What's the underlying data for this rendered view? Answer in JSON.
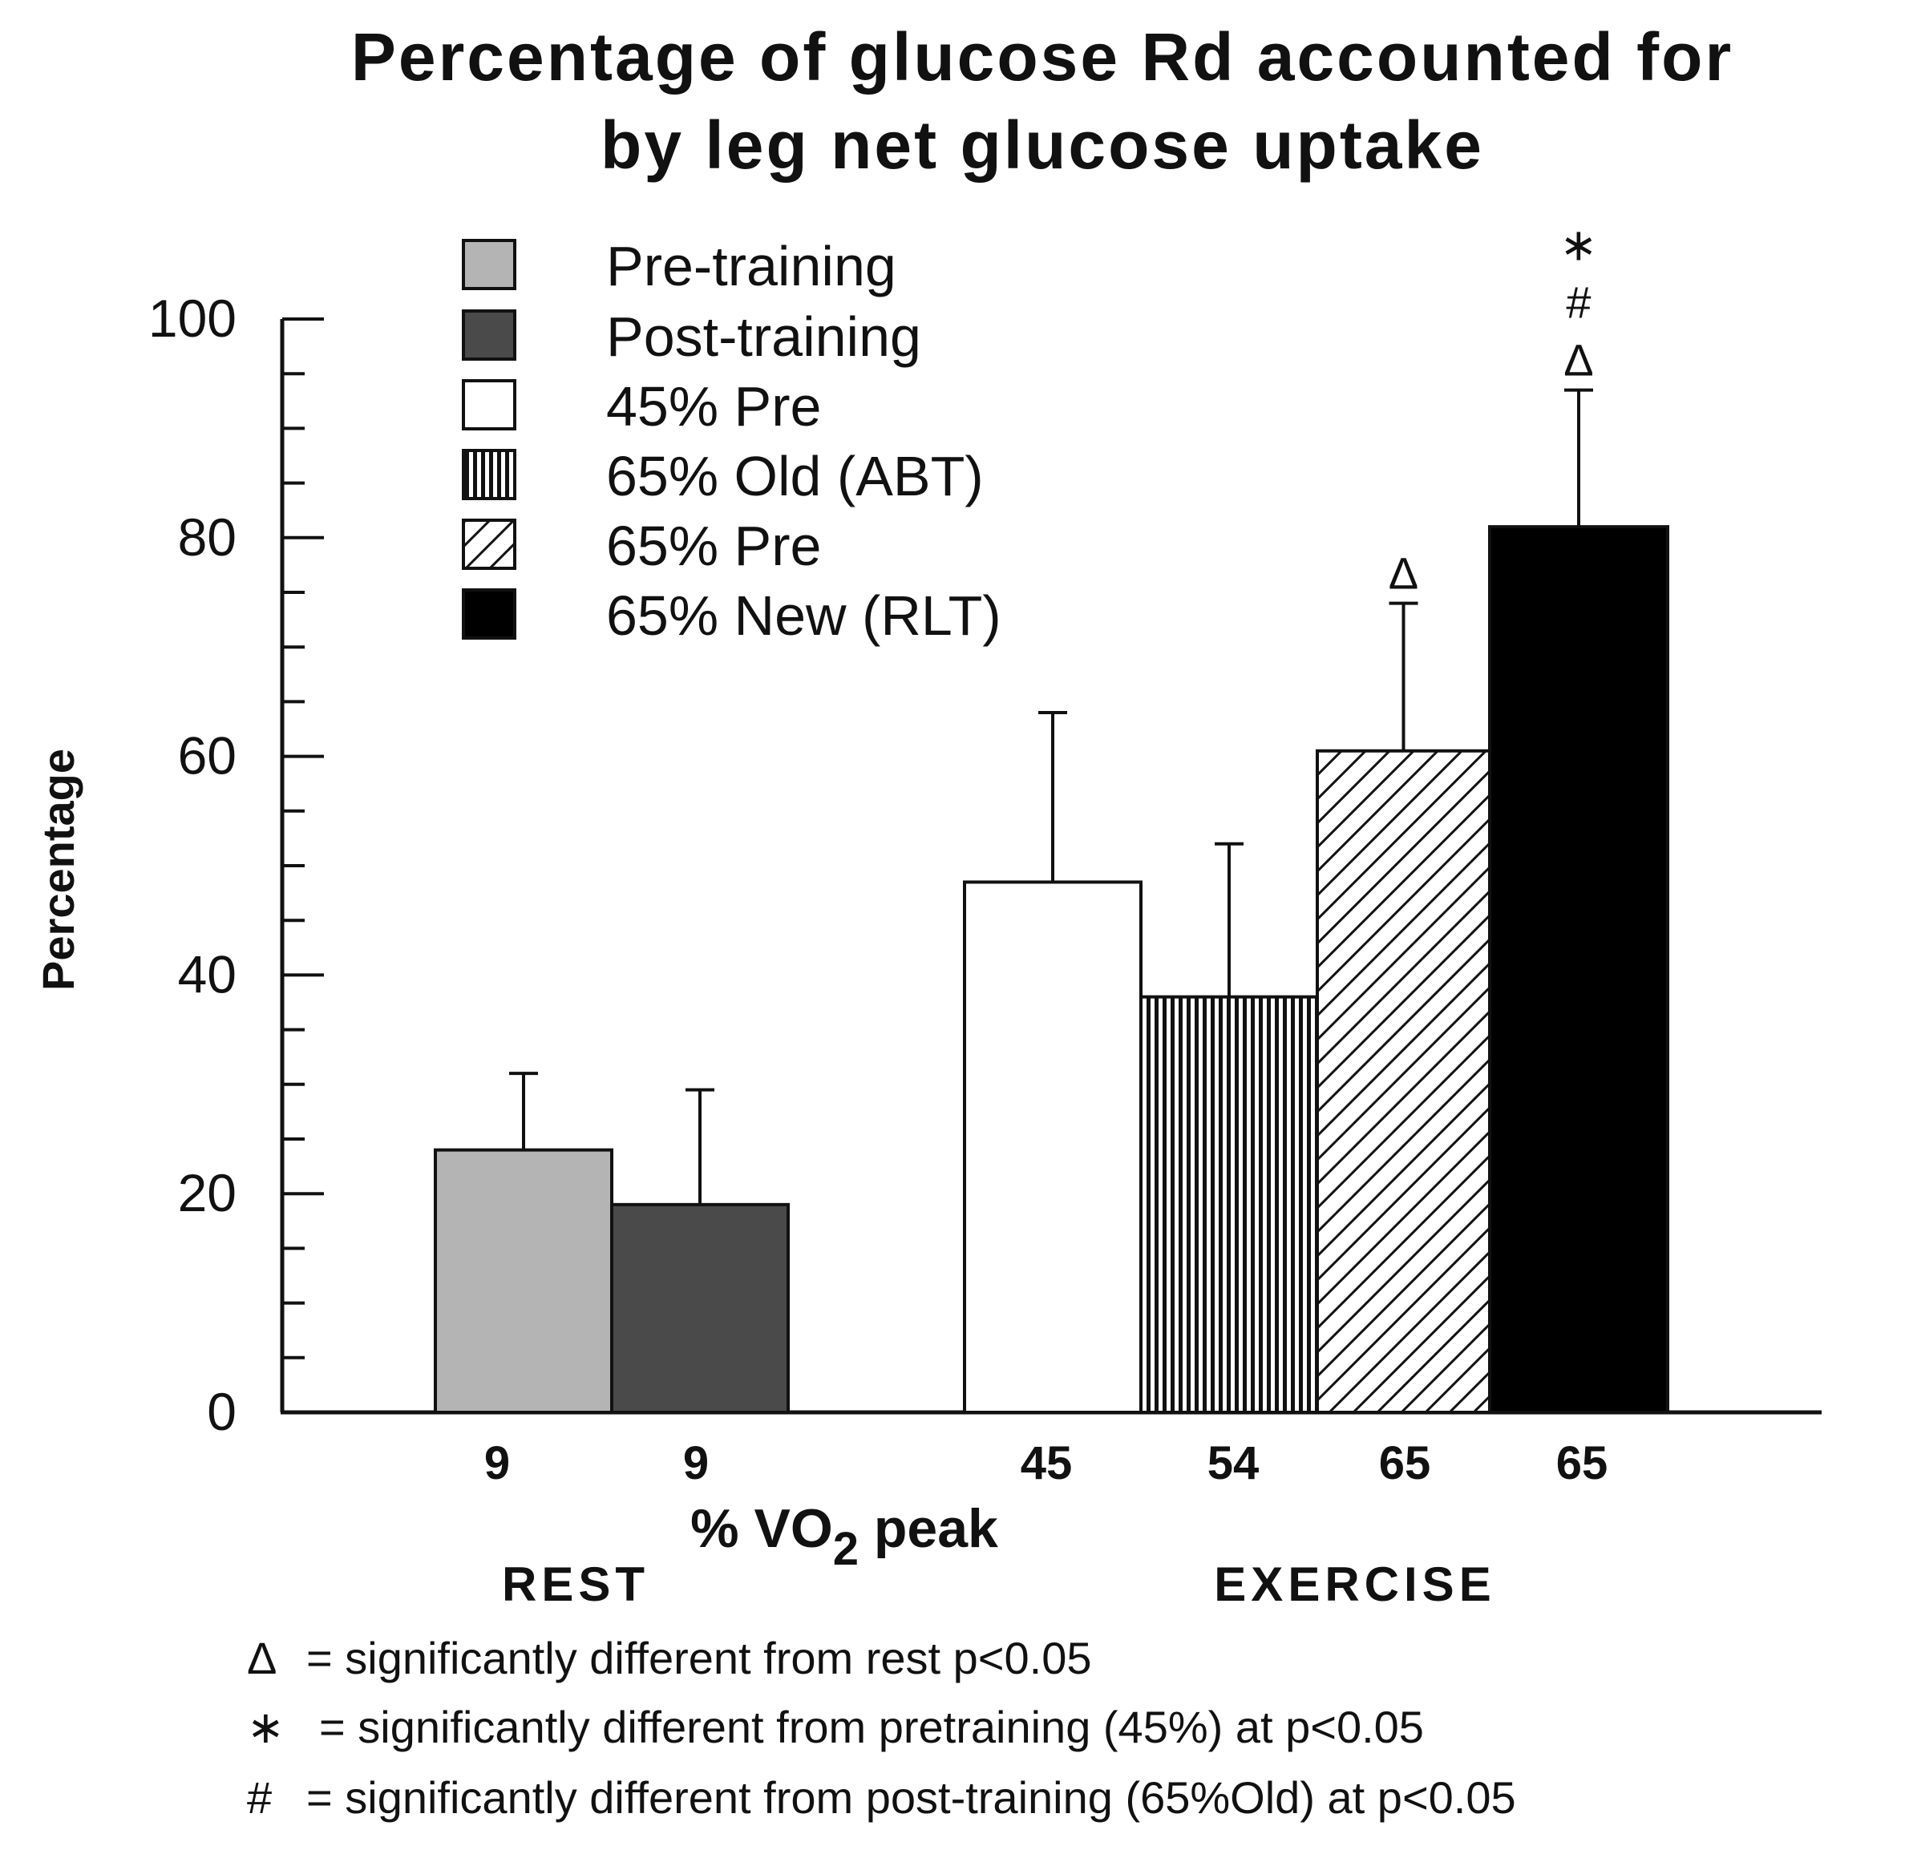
{
  "chart_data": {
    "type": "bar",
    "title_lines": [
      "Percentage of glucose Rd accounted for",
      "by leg net glucose uptake"
    ],
    "ylabel": "Percentage",
    "xlabel_prefix": "% VO",
    "xlabel_subscript": "2",
    "xlabel_suffix": " peak",
    "ylim": [
      0,
      100
    ],
    "yticks": [
      "0",
      "20",
      "40",
      "60",
      "80",
      "100"
    ],
    "categories": [
      "9",
      "9",
      "45",
      "54",
      "65",
      "65"
    ],
    "groups": [
      {
        "label": "REST",
        "bars": [
          0,
          1
        ]
      },
      {
        "label": "EXERCISE",
        "bars": [
          2,
          3,
          4,
          5
        ]
      }
    ],
    "series": [
      {
        "name": "Pre-training",
        "value": 24,
        "error": 7,
        "fill": "#b4b4b4",
        "pattern": "solid",
        "annotations": []
      },
      {
        "name": "Post-training",
        "value": 19,
        "error": 10.5,
        "fill": "#4a4a4a",
        "pattern": "solid",
        "annotations": []
      },
      {
        "name": "45% Pre",
        "value": 48.5,
        "error": 15.5,
        "fill": "#ffffff",
        "pattern": "solid",
        "annotations": []
      },
      {
        "name": "65% Old (ABT)",
        "value": 38,
        "error": 14,
        "fill": "#ffffff",
        "pattern": "vertical",
        "annotations": []
      },
      {
        "name": "65% Pre",
        "value": 60.5,
        "error": 13.5,
        "fill": "#ffffff",
        "pattern": "diagonal",
        "annotations": [
          "Δ"
        ]
      },
      {
        "name": "65% New (RLT)",
        "value": 81,
        "error": 12.5,
        "fill": "#000000",
        "pattern": "solid",
        "annotations": [
          "Δ",
          "#",
          "∗"
        ]
      }
    ],
    "footnotes": [
      {
        "symbol": "Δ",
        "text": "= significantly different from rest p<0.05"
      },
      {
        "symbol": "∗",
        "text": "= significantly different from pretraining (45%) at p<0.05"
      },
      {
        "symbol": "#",
        "text": "= significantly different from post-training (65%Old) at p<0.05"
      }
    ]
  }
}
